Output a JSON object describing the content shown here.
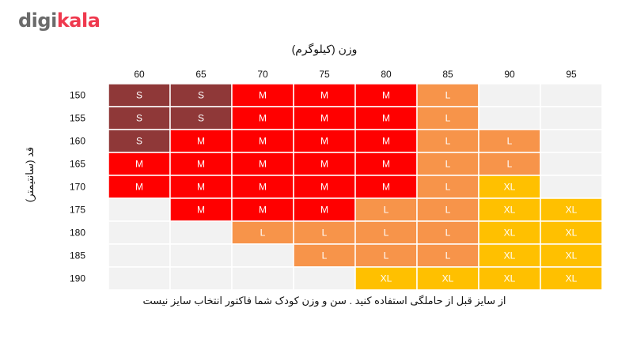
{
  "logo": {
    "part1": "digi",
    "part2": "kala"
  },
  "footnote": "از سایز قبل از حاملگی استفاده کنید . سن و وزن کودک شما فاکتور انتخاب سایز نیست",
  "chart_data": {
    "type": "heatmap",
    "xlabel": "وزن (کیلوگرم)",
    "ylabel": "قد (سانتیمتر)",
    "x": [
      60,
      65,
      70,
      75,
      80,
      85,
      90,
      95
    ],
    "y": [
      150,
      155,
      160,
      165,
      170,
      175,
      180,
      185,
      190
    ],
    "cells": [
      [
        "S",
        "S",
        "M",
        "M",
        "M",
        "L",
        "",
        ""
      ],
      [
        "S",
        "S",
        "M",
        "M",
        "M",
        "L",
        "",
        ""
      ],
      [
        "S",
        "M",
        "M",
        "M",
        "M",
        "L",
        "L",
        ""
      ],
      [
        "M",
        "M",
        "M",
        "M",
        "M",
        "L",
        "L",
        ""
      ],
      [
        "M",
        "M",
        "M",
        "M",
        "M",
        "L",
        "XL",
        ""
      ],
      [
        "",
        "M",
        "M",
        "M",
        "L",
        "L",
        "XL",
        "XL"
      ],
      [
        "",
        "",
        "L",
        "L",
        "L",
        "L",
        "XL",
        "XL"
      ],
      [
        "",
        "",
        "",
        "L",
        "L",
        "L",
        "XL",
        "XL"
      ],
      [
        "",
        "",
        "",
        "",
        "XL",
        "XL",
        "XL",
        "XL"
      ]
    ],
    "colors": {
      "S": "#8f3838",
      "M": "#ff0000",
      "L": "#f7944a",
      "XL": "#ffc000",
      "empty": "#f2f2f2"
    }
  }
}
